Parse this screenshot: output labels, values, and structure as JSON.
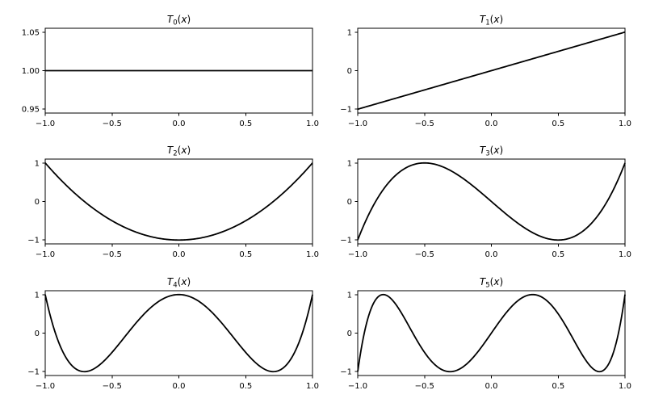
{
  "figure": {
    "background": "#ffffff",
    "axes_face_color": "#ffffff",
    "line_color": "#000000",
    "spine_color": "#000000",
    "text_color": "#000000",
    "grid": false,
    "legend": null
  },
  "chart_data": [
    {
      "id": "T0",
      "type": "line",
      "title": {
        "func": "T",
        "sub": "0",
        "open": "(",
        "var": "x",
        "close": ")",
        "text": "T0(x)"
      },
      "poly_coeffs": [
        1
      ],
      "x": [
        -1,
        -0.9,
        -0.8,
        -0.7,
        -0.6,
        -0.5,
        -0.4,
        -0.3,
        -0.2,
        -0.1,
        0,
        0.1,
        0.2,
        0.3,
        0.4,
        0.5,
        0.6,
        0.7,
        0.8,
        0.9,
        1
      ],
      "y": [
        1,
        1,
        1,
        1,
        1,
        1,
        1,
        1,
        1,
        1,
        1,
        1,
        1,
        1,
        1,
        1,
        1,
        1,
        1,
        1,
        1
      ],
      "x_axis": {
        "lim": [
          -1,
          1
        ],
        "tick_values": [
          -1,
          -0.5,
          0,
          0.5,
          1
        ],
        "tick_labels": [
          "−1.0",
          "−0.5",
          "0.0",
          "0.5",
          "1.0"
        ]
      },
      "y_axis": {
        "lim": [
          0.945,
          1.055
        ],
        "tick_values": [
          0.95,
          1.0,
          1.05
        ],
        "tick_labels": [
          "0.95",
          "1.00",
          "1.05"
        ]
      }
    },
    {
      "id": "T1",
      "type": "line",
      "title": {
        "func": "T",
        "sub": "1",
        "open": "(",
        "var": "x",
        "close": ")",
        "text": "T1(x)"
      },
      "poly_coeffs": [
        0,
        1
      ],
      "x": [
        -1,
        -0.9,
        -0.8,
        -0.7,
        -0.6,
        -0.5,
        -0.4,
        -0.3,
        -0.2,
        -0.1,
        0,
        0.1,
        0.2,
        0.3,
        0.4,
        0.5,
        0.6,
        0.7,
        0.8,
        0.9,
        1
      ],
      "y": [
        -1,
        -0.9,
        -0.8,
        -0.7,
        -0.6,
        -0.5,
        -0.4,
        -0.3,
        -0.2,
        -0.1,
        0,
        0.1,
        0.2,
        0.3,
        0.4,
        0.5,
        0.6,
        0.7,
        0.8,
        0.9,
        1
      ],
      "x_axis": {
        "lim": [
          -1,
          1
        ],
        "tick_values": [
          -1,
          -0.5,
          0,
          0.5,
          1
        ],
        "tick_labels": [
          "−1.0",
          "−0.5",
          "0.0",
          "0.5",
          "1.0"
        ]
      },
      "y_axis": {
        "lim": [
          -1.1,
          1.1
        ],
        "tick_values": [
          -1,
          0,
          1
        ],
        "tick_labels": [
          "−1",
          "0",
          "1"
        ]
      }
    },
    {
      "id": "T2",
      "type": "line",
      "title": {
        "func": "T",
        "sub": "2",
        "open": "(",
        "var": "x",
        "close": ")",
        "text": "T2(x)"
      },
      "poly_coeffs": [
        -1,
        0,
        2
      ],
      "x": [
        -1,
        -0.9,
        -0.8,
        -0.7,
        -0.6,
        -0.5,
        -0.4,
        -0.3,
        -0.2,
        -0.1,
        0,
        0.1,
        0.2,
        0.3,
        0.4,
        0.5,
        0.6,
        0.7,
        0.8,
        0.9,
        1
      ],
      "y": [
        1,
        0.62,
        0.28,
        -0.02,
        -0.28,
        -0.5,
        -0.68,
        -0.82,
        -0.92,
        -0.98,
        -1,
        -0.98,
        -0.92,
        -0.82,
        -0.68,
        -0.5,
        -0.28,
        -0.02,
        0.28,
        0.62,
        1
      ],
      "x_axis": {
        "lim": [
          -1,
          1
        ],
        "tick_values": [
          -1,
          -0.5,
          0,
          0.5,
          1
        ],
        "tick_labels": [
          "−1.0",
          "−0.5",
          "0.0",
          "0.5",
          "1.0"
        ]
      },
      "y_axis": {
        "lim": [
          -1.1,
          1.1
        ],
        "tick_values": [
          -1,
          0,
          1
        ],
        "tick_labels": [
          "−1",
          "0",
          "1"
        ]
      }
    },
    {
      "id": "T3",
      "type": "line",
      "title": {
        "func": "T",
        "sub": "3",
        "open": "(",
        "var": "x",
        "close": ")",
        "text": "T3(x)"
      },
      "poly_coeffs": [
        0,
        -3,
        0,
        4
      ],
      "x": [
        -1,
        -0.9,
        -0.8,
        -0.7,
        -0.6,
        -0.5,
        -0.4,
        -0.3,
        -0.2,
        -0.1,
        0,
        0.1,
        0.2,
        0.3,
        0.4,
        0.5,
        0.6,
        0.7,
        0.8,
        0.9,
        1
      ],
      "y": [
        -1,
        -0.216,
        0.352,
        0.728,
        0.936,
        1,
        0.944,
        0.792,
        0.568,
        0.296,
        0,
        -0.296,
        -0.568,
        -0.792,
        -0.944,
        -1,
        -0.936,
        -0.728,
        -0.352,
        0.216,
        1
      ],
      "x_axis": {
        "lim": [
          -1,
          1
        ],
        "tick_values": [
          -1,
          -0.5,
          0,
          0.5,
          1
        ],
        "tick_labels": [
          "−1.0",
          "−0.5",
          "0.0",
          "0.5",
          "1.0"
        ]
      },
      "y_axis": {
        "lim": [
          -1.1,
          1.1
        ],
        "tick_values": [
          -1,
          0,
          1
        ],
        "tick_labels": [
          "−1",
          "0",
          "1"
        ]
      }
    },
    {
      "id": "T4",
      "type": "line",
      "title": {
        "func": "T",
        "sub": "4",
        "open": "(",
        "var": "x",
        "close": ")",
        "text": "T4(x)"
      },
      "poly_coeffs": [
        1,
        0,
        -8,
        0,
        8
      ],
      "x": [
        -1,
        -0.9,
        -0.8,
        -0.7,
        -0.6,
        -0.5,
        -0.4,
        -0.3,
        -0.2,
        -0.1,
        0,
        0.1,
        0.2,
        0.3,
        0.4,
        0.5,
        0.6,
        0.7,
        0.8,
        0.9,
        1
      ],
      "y": [
        1,
        -0.2312,
        -0.8432,
        -0.9992,
        -0.8432,
        -0.5,
        -0.0752,
        0.3448,
        0.6928,
        0.9208,
        1,
        0.9208,
        0.6928,
        0.3448,
        -0.0752,
        -0.5,
        -0.8432,
        -0.9992,
        -0.8432,
        -0.2312,
        1
      ],
      "x_axis": {
        "lim": [
          -1,
          1
        ],
        "tick_values": [
          -1,
          -0.5,
          0,
          0.5,
          1
        ],
        "tick_labels": [
          "−1.0",
          "−0.5",
          "0.0",
          "0.5",
          "1.0"
        ]
      },
      "y_axis": {
        "lim": [
          -1.1,
          1.1
        ],
        "tick_values": [
          -1,
          0,
          1
        ],
        "tick_labels": [
          "−1",
          "0",
          "1"
        ]
      }
    },
    {
      "id": "T5",
      "type": "line",
      "title": {
        "func": "T",
        "sub": "5",
        "open": "(",
        "var": "x",
        "close": ")",
        "text": "T5(x)"
      },
      "poly_coeffs": [
        0,
        5,
        0,
        -20,
        0,
        16
      ],
      "x": [
        -1,
        -0.9,
        -0.8,
        -0.7,
        -0.6,
        -0.5,
        -0.4,
        -0.3,
        -0.2,
        -0.1,
        0,
        0.1,
        0.2,
        0.3,
        0.4,
        0.5,
        0.6,
        0.7,
        0.8,
        0.9,
        1
      ],
      "y": [
        -1,
        0.6322,
        0.9971,
        0.6709,
        0.0758,
        -0.5,
        -0.8838,
        -0.9989,
        -0.8451,
        -0.4802,
        0,
        0.4802,
        0.8451,
        0.9989,
        0.8838,
        0.5,
        -0.0758,
        -0.6709,
        -0.9971,
        -0.6322,
        1
      ],
      "x_axis": {
        "lim": [
          -1,
          1
        ],
        "tick_values": [
          -1,
          -0.5,
          0,
          0.5,
          1
        ],
        "tick_labels": [
          "−1.0",
          "−0.5",
          "0.0",
          "0.5",
          "1.0"
        ]
      },
      "y_axis": {
        "lim": [
          -1.1,
          1.1
        ],
        "tick_values": [
          -1,
          0,
          1
        ],
        "tick_labels": [
          "−1",
          "0",
          "1"
        ]
      }
    }
  ]
}
